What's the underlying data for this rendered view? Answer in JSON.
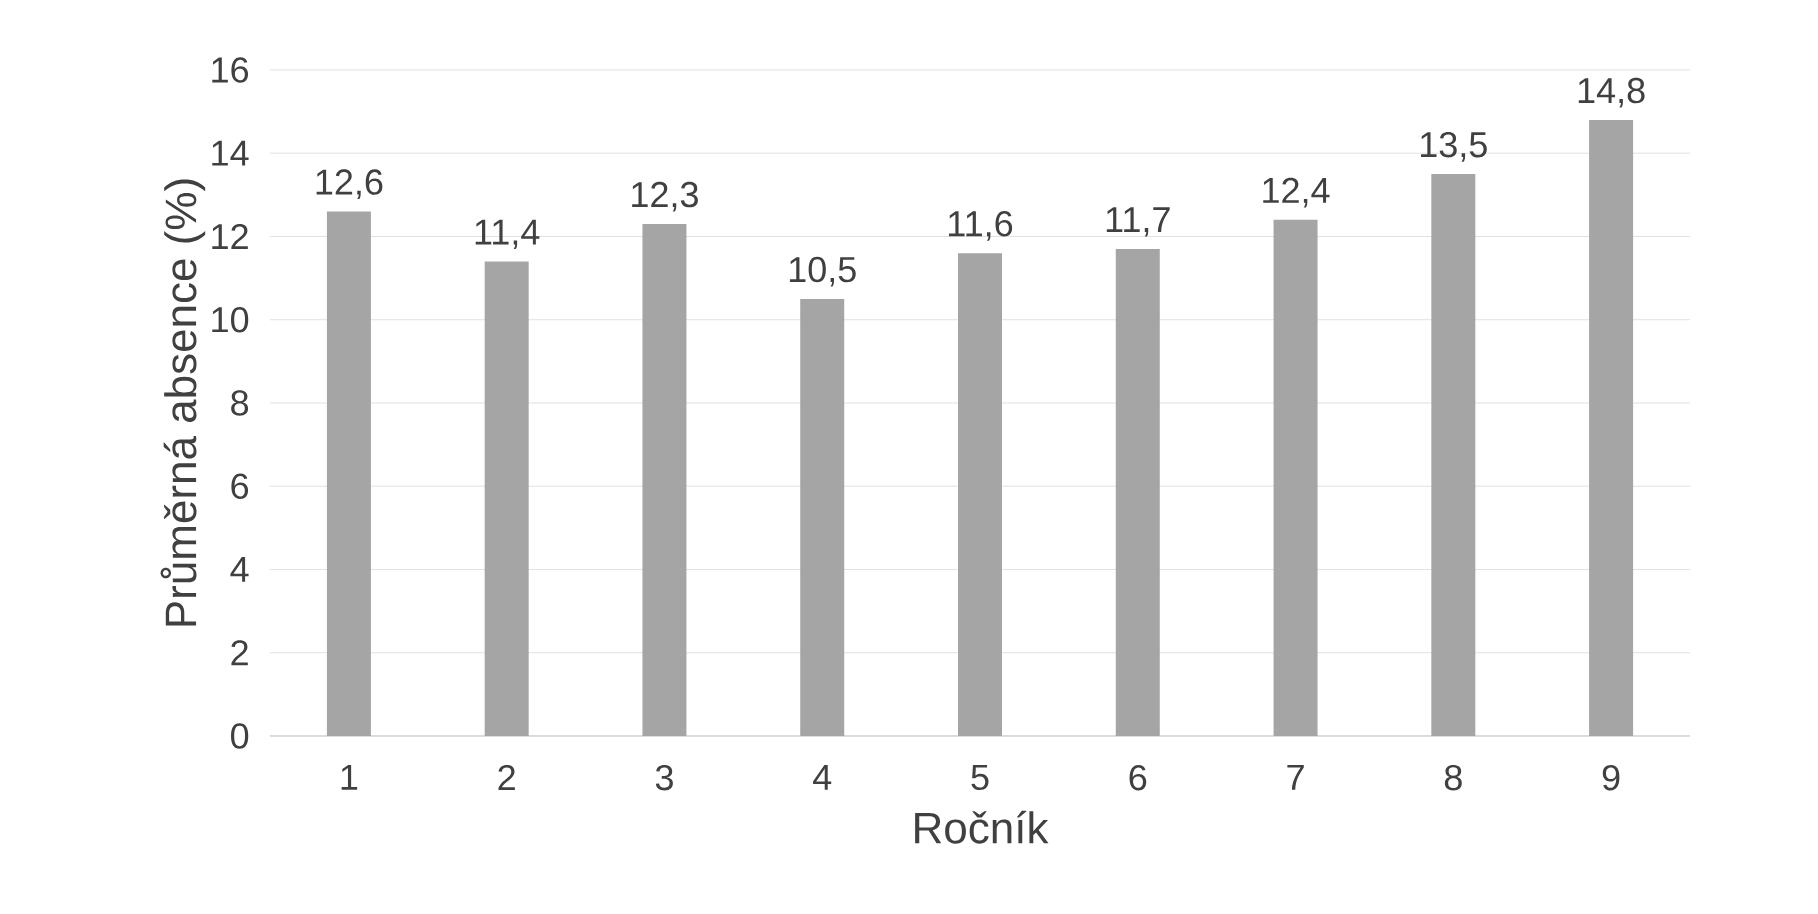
{
  "chart_data": {
    "type": "bar",
    "xlabel": "Ročník",
    "ylabel": "Průměrná absence (%)",
    "categories": [
      "1",
      "2",
      "3",
      "4",
      "5",
      "6",
      "7",
      "8",
      "9"
    ],
    "values": [
      12.6,
      11.4,
      12.3,
      10.5,
      11.6,
      11.7,
      12.4,
      13.5,
      14.8
    ],
    "value_labels": [
      "12,6",
      "11,4",
      "12,3",
      "10,5",
      "11,6",
      "11,7",
      "12,4",
      "13,5",
      "14,8"
    ],
    "color": "#a5a5a5",
    "ylim": [
      0,
      16
    ],
    "yticks": [
      0,
      2,
      4,
      6,
      8,
      10,
      12,
      14,
      16
    ],
    "grid": "y"
  }
}
